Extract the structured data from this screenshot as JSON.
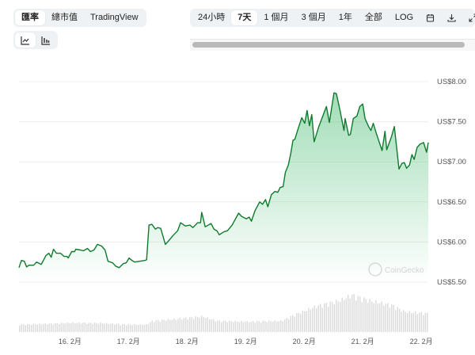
{
  "tabs": [
    {
      "label": "匯率",
      "selected": true
    },
    {
      "label": "總市值",
      "selected": false
    },
    {
      "label": "TradingView",
      "selected": false
    }
  ],
  "views": [
    {
      "icon": "line-chart-icon",
      "selected": true
    },
    {
      "icon": "candlestick-chart-icon",
      "selected": false
    }
  ],
  "ranges": [
    {
      "label": "24小時",
      "selected": false
    },
    {
      "label": "7天",
      "selected": true
    },
    {
      "label": "1 個月",
      "selected": false
    },
    {
      "label": "3 個月",
      "selected": false
    },
    {
      "label": "1年",
      "selected": false
    },
    {
      "label": "全部",
      "selected": false
    },
    {
      "label": "LOG",
      "selected": false
    }
  ],
  "toolbar_icons": [
    "calendar-icon",
    "download-icon",
    "expand-icon"
  ],
  "watermark": "CoinGecko",
  "colors": {
    "line": "#16a34a",
    "line_dark": "#0e7a2c",
    "fill": "#2fb35f",
    "grid": "#ececec",
    "volume": "#d9d9d9"
  },
  "chart_data": {
    "type": "area",
    "x_unit": "day of February",
    "y_ticks": [
      {
        "v": 8.0,
        "label": "US$8.00"
      },
      {
        "v": 7.5,
        "label": "US$7.50"
      },
      {
        "v": 7.0,
        "label": "US$7.00"
      },
      {
        "v": 6.5,
        "label": "US$6.50"
      },
      {
        "v": 6.0,
        "label": "US$6.00"
      },
      {
        "v": 5.5,
        "label": "US$5.50"
      }
    ],
    "x_ticks": [
      {
        "v": 16,
        "label": "16. 2月"
      },
      {
        "v": 17,
        "label": "17. 2月"
      },
      {
        "v": 18,
        "label": "18. 2月"
      },
      {
        "v": 19,
        "label": "19. 2月"
      },
      {
        "v": 20,
        "label": "20. 2月"
      },
      {
        "v": 21,
        "label": "21. 2月"
      },
      {
        "v": 22,
        "label": "22. 2月"
      }
    ],
    "ylim": [
      5.5,
      8.0
    ],
    "xlim": [
      15.13,
      22.12
    ],
    "grid": true,
    "price": [
      [
        15.13,
        5.68
      ],
      [
        15.17,
        5.77
      ],
      [
        15.22,
        5.76
      ],
      [
        15.26,
        5.69
      ],
      [
        15.3,
        5.71
      ],
      [
        15.38,
        5.71
      ],
      [
        15.43,
        5.75
      ],
      [
        15.51,
        5.72
      ],
      [
        15.59,
        5.83
      ],
      [
        15.64,
        5.86
      ],
      [
        15.68,
        5.81
      ],
      [
        15.72,
        5.91
      ],
      [
        15.77,
        5.86
      ],
      [
        15.84,
        5.86
      ],
      [
        15.9,
        5.82
      ],
      [
        15.95,
        5.82
      ],
      [
        15.97,
        5.8
      ],
      [
        16.03,
        5.88
      ],
      [
        16.08,
        5.88
      ],
      [
        16.1,
        5.91
      ],
      [
        16.18,
        5.9
      ],
      [
        16.23,
        5.89
      ],
      [
        16.3,
        5.92
      ],
      [
        16.35,
        5.88
      ],
      [
        16.41,
        5.9
      ],
      [
        16.47,
        5.97
      ],
      [
        16.54,
        5.95
      ],
      [
        16.6,
        5.9
      ],
      [
        16.65,
        5.76
      ],
      [
        16.73,
        5.74
      ],
      [
        16.78,
        5.7
      ],
      [
        16.84,
        5.68
      ],
      [
        16.91,
        5.73
      ],
      [
        16.96,
        5.74
      ],
      [
        17.01,
        5.8
      ],
      [
        17.06,
        5.77
      ],
      [
        17.11,
        5.75
      ],
      [
        17.19,
        5.76
      ],
      [
        17.28,
        5.77
      ],
      [
        17.31,
        5.78
      ],
      [
        17.35,
        6.21
      ],
      [
        17.4,
        6.22
      ],
      [
        17.46,
        6.16
      ],
      [
        17.5,
        6.18
      ],
      [
        17.55,
        6.17
      ],
      [
        17.63,
        5.97
      ],
      [
        17.68,
        6.01
      ],
      [
        17.76,
        6.08
      ],
      [
        17.84,
        6.14
      ],
      [
        17.89,
        6.24
      ],
      [
        17.97,
        6.2
      ],
      [
        18.05,
        6.21
      ],
      [
        18.1,
        6.18
      ],
      [
        18.18,
        6.24
      ],
      [
        18.23,
        6.24
      ],
      [
        18.25,
        6.37
      ],
      [
        18.31,
        6.19
      ],
      [
        18.41,
        6.23
      ],
      [
        18.46,
        6.16
      ],
      [
        18.51,
        6.14
      ],
      [
        18.55,
        6.09
      ],
      [
        18.59,
        6.11
      ],
      [
        18.64,
        6.13
      ],
      [
        18.69,
        6.14
      ],
      [
        18.77,
        6.21
      ],
      [
        18.88,
        6.36
      ],
      [
        18.93,
        6.32
      ],
      [
        19.01,
        6.29
      ],
      [
        19.06,
        6.31
      ],
      [
        19.1,
        6.26
      ],
      [
        19.16,
        6.39
      ],
      [
        19.24,
        6.5
      ],
      [
        19.29,
        6.47
      ],
      [
        19.34,
        6.53
      ],
      [
        19.38,
        6.44
      ],
      [
        19.44,
        6.59
      ],
      [
        19.5,
        6.63
      ],
      [
        19.55,
        6.62
      ],
      [
        19.59,
        6.68
      ],
      [
        19.64,
        6.69
      ],
      [
        19.68,
        6.87
      ],
      [
        19.73,
        6.96
      ],
      [
        19.77,
        7.1
      ],
      [
        19.81,
        7.27
      ],
      [
        19.84,
        7.28
      ],
      [
        19.9,
        7.42
      ],
      [
        19.96,
        7.55
      ],
      [
        20.01,
        7.48
      ],
      [
        20.05,
        7.64
      ],
      [
        20.09,
        7.45
      ],
      [
        20.13,
        7.59
      ],
      [
        20.17,
        7.25
      ],
      [
        20.25,
        7.44
      ],
      [
        20.38,
        7.69
      ],
      [
        20.43,
        7.49
      ],
      [
        20.51,
        7.86
      ],
      [
        20.55,
        7.85
      ],
      [
        20.61,
        7.65
      ],
      [
        20.68,
        7.39
      ],
      [
        20.7,
        7.54
      ],
      [
        20.76,
        7.33
      ],
      [
        20.79,
        7.34
      ],
      [
        20.84,
        7.54
      ],
      [
        20.9,
        7.57
      ],
      [
        20.95,
        7.69
      ],
      [
        21.0,
        7.72
      ],
      [
        21.04,
        7.54
      ],
      [
        21.1,
        7.44
      ],
      [
        21.14,
        7.39
      ],
      [
        21.18,
        7.48
      ],
      [
        21.23,
        7.36
      ],
      [
        21.33,
        7.14
      ],
      [
        21.38,
        7.38
      ],
      [
        21.41,
        7.15
      ],
      [
        21.49,
        7.31
      ],
      [
        21.54,
        7.44
      ],
      [
        21.62,
        6.91
      ],
      [
        21.67,
        6.98
      ],
      [
        21.71,
        6.99
      ],
      [
        21.75,
        6.92
      ],
      [
        21.8,
        6.96
      ],
      [
        21.84,
        7.09
      ],
      [
        21.88,
        7.03
      ],
      [
        21.93,
        7.18
      ],
      [
        21.98,
        7.22
      ],
      [
        22.04,
        7.24
      ],
      [
        22.09,
        7.12
      ],
      [
        22.12,
        7.24
      ]
    ],
    "volume_relative": [
      [
        15.13,
        0.2
      ],
      [
        15.6,
        0.22
      ],
      [
        16.0,
        0.25
      ],
      [
        16.5,
        0.24
      ],
      [
        17.0,
        0.2
      ],
      [
        17.3,
        0.2
      ],
      [
        17.4,
        0.3
      ],
      [
        17.8,
        0.35
      ],
      [
        18.25,
        0.42
      ],
      [
        18.5,
        0.3
      ],
      [
        19.0,
        0.28
      ],
      [
        19.6,
        0.3
      ],
      [
        19.8,
        0.45
      ],
      [
        20.2,
        0.7
      ],
      [
        20.6,
        0.85
      ],
      [
        20.8,
        1.0
      ],
      [
        21.1,
        0.85
      ],
      [
        21.5,
        0.72
      ],
      [
        21.7,
        0.55
      ],
      [
        22.12,
        0.5
      ]
    ]
  }
}
